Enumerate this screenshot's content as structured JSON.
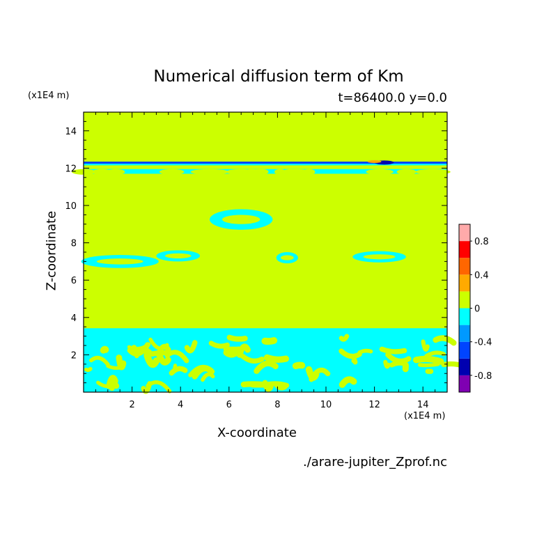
{
  "chart_data": {
    "type": "heatmap",
    "title": "Numerical diffusion term of Km",
    "subtitle": "t=86400.0 y=0.0",
    "xlabel": "X-coordinate",
    "ylabel": "Z-coordinate",
    "x_unit": "(x1E4 m)",
    "y_unit": "(x1E4 m)",
    "source": "./arare-jupiter_Zprof.nc",
    "xlim": [
      0,
      15
    ],
    "ylim": [
      0,
      15
    ],
    "x_ticks": [
      2,
      4,
      6,
      8,
      10,
      12,
      14
    ],
    "y_ticks": [
      2,
      4,
      6,
      8,
      10,
      12,
      14
    ],
    "colorbar": {
      "levels": [
        -1,
        -0.8,
        -0.6,
        -0.4,
        -0.2,
        0,
        0.2,
        0.4,
        0.6,
        0.8,
        1
      ],
      "colors": [
        "#7f00b2",
        "#0000b0",
        "#0044ff",
        "#0099ff",
        "#00ffff",
        "#ccff00",
        "#ffaa00",
        "#ff6600",
        "#ff0000",
        "#ffaaaa"
      ],
      "tick_labels": [
        "-0.8",
        "-0.4",
        "0",
        "0.4",
        "0.8"
      ],
      "tick_values": [
        -0.8,
        -0.4,
        0,
        0.4,
        0.8
      ]
    },
    "background_color": "#ccff00",
    "negative_color": "#00ffff",
    "bands": [
      {
        "x": [
          0,
          15
        ],
        "y": [
          11.7,
          12.3
        ]
      },
      {
        "x": [
          0,
          15
        ],
        "y": [
          0,
          3.3
        ]
      }
    ],
    "blobs": [
      {
        "cx": 6.5,
        "cy": 9.25,
        "rx": 1.3,
        "ry": 0.55
      },
      {
        "cx": 8.4,
        "cy": 7.2,
        "rx": 0.45,
        "ry": 0.3
      },
      {
        "cx": 12.2,
        "cy": 7.25,
        "rx": 1.1,
        "ry": 0.3
      },
      {
        "cx": 1.5,
        "cy": 7.0,
        "rx": 1.6,
        "ry": 0.35
      },
      {
        "cx": 3.9,
        "cy": 7.3,
        "rx": 0.9,
        "ry": 0.3
      }
    ]
  }
}
